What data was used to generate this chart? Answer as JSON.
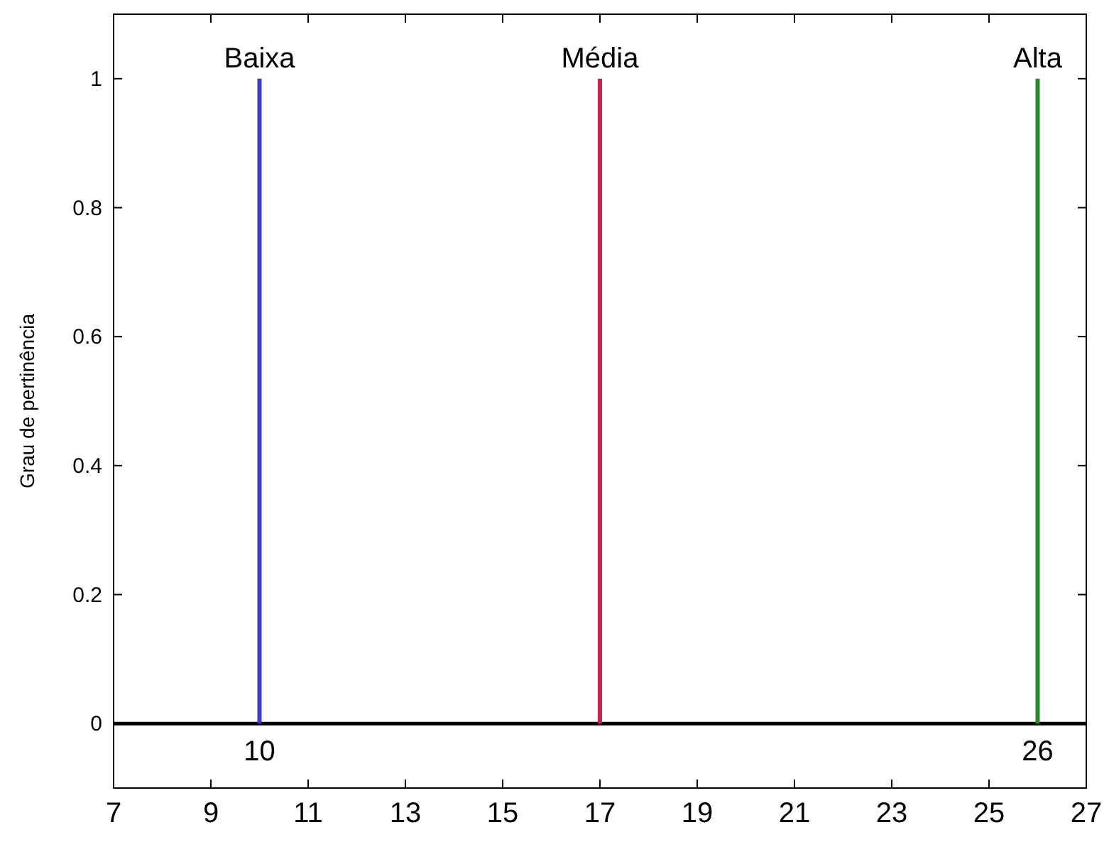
{
  "chart_data": {
    "type": "line",
    "ylabel": "Grau de pertinência",
    "xlim": [
      7,
      27
    ],
    "xticks": [
      7,
      9,
      11,
      13,
      15,
      17,
      19,
      21,
      23,
      25,
      27
    ],
    "ylim": [
      -0.1,
      1.1
    ],
    "yticks": [
      0,
      0.2,
      0.4,
      0.6,
      0.8,
      1
    ],
    "grid": false,
    "marker": "none",
    "line_style": "solid",
    "series": [
      {
        "name": "Baixa",
        "color": "#3a3ad0",
        "x": [
          10,
          10
        ],
        "values": [
          0,
          1
        ]
      },
      {
        "name": "Média",
        "color": "#c8234a",
        "x": [
          17,
          17
        ],
        "values": [
          0,
          1
        ]
      },
      {
        "name": "Alta",
        "color": "#2a8a2a",
        "x": [
          26,
          26
        ],
        "values": [
          0,
          1
        ]
      }
    ],
    "ref_lines": [
      {
        "axis": "y",
        "value": 0,
        "color": "#000000"
      }
    ],
    "annotations": [
      {
        "text": "10",
        "x": 10,
        "y": 0
      },
      {
        "text": "26",
        "x": 26,
        "y": 0
      }
    ]
  }
}
